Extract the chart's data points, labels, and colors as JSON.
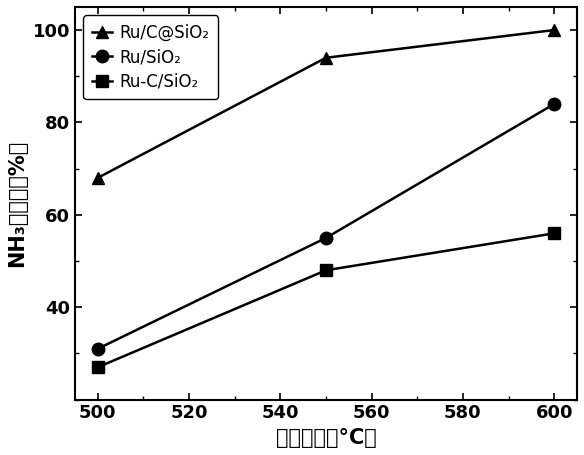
{
  "x": [
    500,
    550,
    600
  ],
  "series": [
    {
      "label": "Ru/C@SiO₂",
      "y": [
        68,
        94,
        100
      ],
      "marker": "^",
      "color": "#000000",
      "markersize": 9,
      "linewidth": 1.8
    },
    {
      "label": "Ru/SiO₂",
      "y": [
        31,
        55,
        84
      ],
      "marker": "o",
      "color": "#000000",
      "markersize": 9,
      "linewidth": 1.8
    },
    {
      "label": "Ru-C/SiO₂",
      "y": [
        27,
        48,
        56
      ],
      "marker": "s",
      "color": "#000000",
      "markersize": 9,
      "linewidth": 1.8
    }
  ],
  "xlabel": "反应温度（°C）",
  "ylabel": "NH₃转化率（%）",
  "xlim": [
    495,
    605
  ],
  "ylim": [
    20,
    105
  ],
  "xticks": [
    500,
    520,
    540,
    560,
    580,
    600
  ],
  "yticks": [
    40,
    60,
    80,
    100
  ],
  "legend_loc": "upper left",
  "xlabel_fontsize": 15,
  "ylabel_fontsize": 15,
  "tick_fontsize": 13,
  "legend_fontsize": 12
}
